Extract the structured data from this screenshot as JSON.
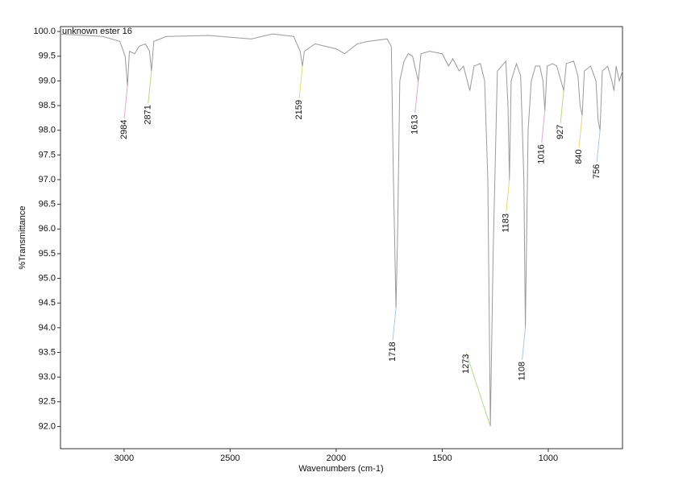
{
  "chart_data": {
    "type": "line",
    "annotation": "unknown ester 16",
    "xlabel": "Wavenumbers (cm-1)",
    "ylabel": "%Transmittance",
    "color": "#9a9a9a",
    "xlim": [
      3300,
      650
    ],
    "ylim": [
      91.55,
      100.1
    ],
    "xticks": [
      3000,
      2500,
      2000,
      1500,
      1000
    ],
    "yticks": [
      {
        "value": 100,
        "label": "100.0"
      },
      99.5,
      {
        "value": 99,
        "label": "99.0"
      },
      98.5,
      {
        "value": 98,
        "label": "98.0"
      },
      97.5,
      {
        "value": 97,
        "label": "97.0"
      },
      96.5,
      {
        "value": 96,
        "label": "96.0"
      },
      95.5,
      {
        "value": 95,
        "label": "95.0"
      },
      94.5,
      {
        "value": 94,
        "label": "94.0"
      },
      93.5,
      {
        "value": 93,
        "label": "93.0"
      },
      92.5,
      {
        "value": 92,
        "label": "92.0"
      }
    ],
    "x": [
      3300,
      3100,
      3020,
      2995,
      2984,
      2975,
      2950,
      2930,
      2900,
      2880,
      2871,
      2860,
      2800,
      2600,
      2400,
      2300,
      2200,
      2170,
      2159,
      2150,
      2100,
      2050,
      2000,
      1960,
      1900,
      1850,
      1760,
      1740,
      1730,
      1718,
      1710,
      1700,
      1680,
      1660,
      1640,
      1613,
      1600,
      1560,
      1500,
      1470,
      1450,
      1420,
      1400,
      1370,
      1350,
      1320,
      1300,
      1285,
      1273,
      1260,
      1240,
      1220,
      1200,
      1190,
      1183,
      1175,
      1150,
      1130,
      1115,
      1108,
      1095,
      1080,
      1060,
      1040,
      1025,
      1016,
      1005,
      980,
      960,
      940,
      927,
      915,
      880,
      860,
      850,
      840,
      830,
      800,
      775,
      765,
      756,
      745,
      720,
      700,
      690,
      680,
      665,
      650
    ],
    "values": [
      99.95,
      99.9,
      99.8,
      99.5,
      98.9,
      99.6,
      99.55,
      99.7,
      99.75,
      99.6,
      99.2,
      99.8,
      99.9,
      99.92,
      99.85,
      99.95,
      99.9,
      99.6,
      99.3,
      99.6,
      99.75,
      99.7,
      99.65,
      99.55,
      99.75,
      99.8,
      99.85,
      99.7,
      97.0,
      94.4,
      96.0,
      99.0,
      99.4,
      99.55,
      99.5,
      99.0,
      99.55,
      99.6,
      99.55,
      99.3,
      99.45,
      99.2,
      99.3,
      98.8,
      99.3,
      99.35,
      99.0,
      97.0,
      92.0,
      95.5,
      99.2,
      99.3,
      99.4,
      98.5,
      97.0,
      99.0,
      99.35,
      99.1,
      97.0,
      94.0,
      98.0,
      99.0,
      99.3,
      99.3,
      99.0,
      98.4,
      99.3,
      99.35,
      99.3,
      99.0,
      98.8,
      99.35,
      99.4,
      99.1,
      98.5,
      98.3,
      99.2,
      99.3,
      99.0,
      98.2,
      98.0,
      99.2,
      99.3,
      99.0,
      98.8,
      99.3,
      99.0,
      99.2
    ],
    "peaks": [
      {
        "x": 2984,
        "y": 98.9
      },
      {
        "x": 2871,
        "y": 99.2
      },
      {
        "x": 2159,
        "y": 99.3
      },
      {
        "x": 1718,
        "y": 94.4
      },
      {
        "x": 1613,
        "y": 99.0
      },
      {
        "x": 1273,
        "y": 92.0
      },
      {
        "x": 1183,
        "y": 97.0
      },
      {
        "x": 1108,
        "y": 94.0
      },
      {
        "x": 1016,
        "y": 98.4
      },
      {
        "x": 927,
        "y": 98.8
      },
      {
        "x": 840,
        "y": 98.3
      },
      {
        "x": 756,
        "y": 98.0
      }
    ]
  }
}
